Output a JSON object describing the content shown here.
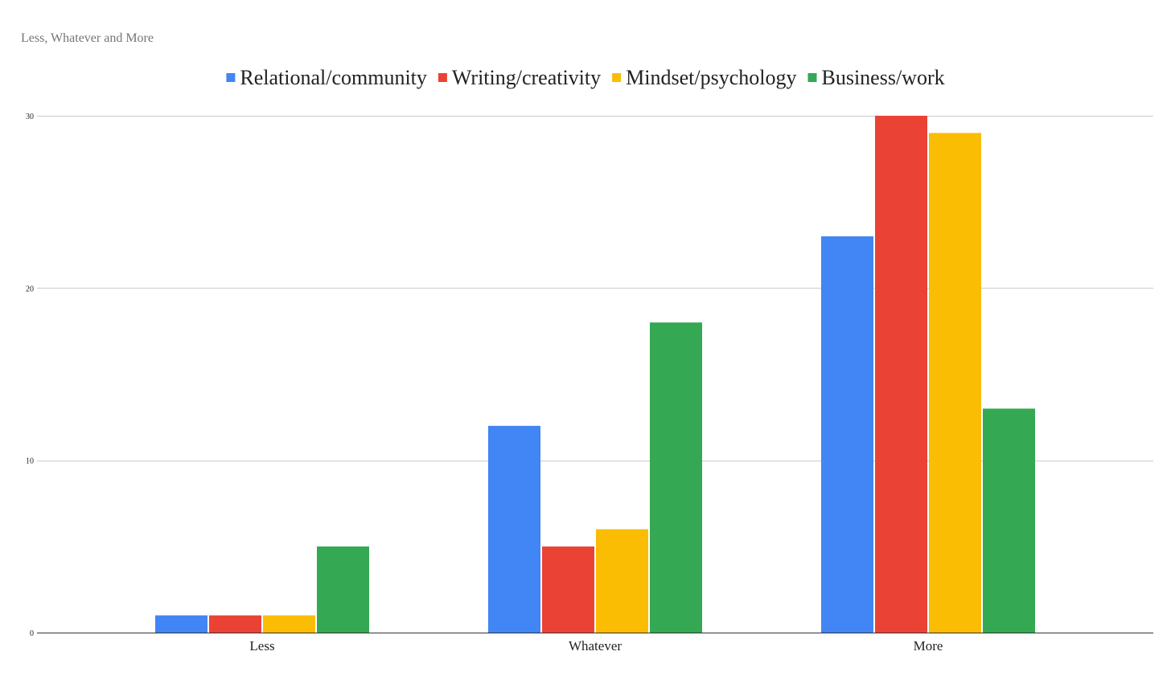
{
  "chart_data": {
    "type": "bar",
    "title": "Less, Whatever and More",
    "categories": [
      "Less",
      "Whatever",
      "More"
    ],
    "series": [
      {
        "name": "Relational/community",
        "color": "#4285F4",
        "values": [
          1,
          12,
          23
        ]
      },
      {
        "name": "Writing/creativity",
        "color": "#EA4335",
        "values": [
          1,
          5,
          30
        ]
      },
      {
        "name": "Mindset/psychology",
        "color": "#FBBC04",
        "values": [
          1,
          6,
          29
        ]
      },
      {
        "name": "Business/work",
        "color": "#34A853",
        "values": [
          5,
          18,
          13
        ]
      }
    ],
    "ylim": [
      0,
      30
    ],
    "yticks": [
      0,
      10,
      20,
      30
    ],
    "xlabel": "",
    "ylabel": "",
    "grid": true,
    "legend_position": "top"
  }
}
